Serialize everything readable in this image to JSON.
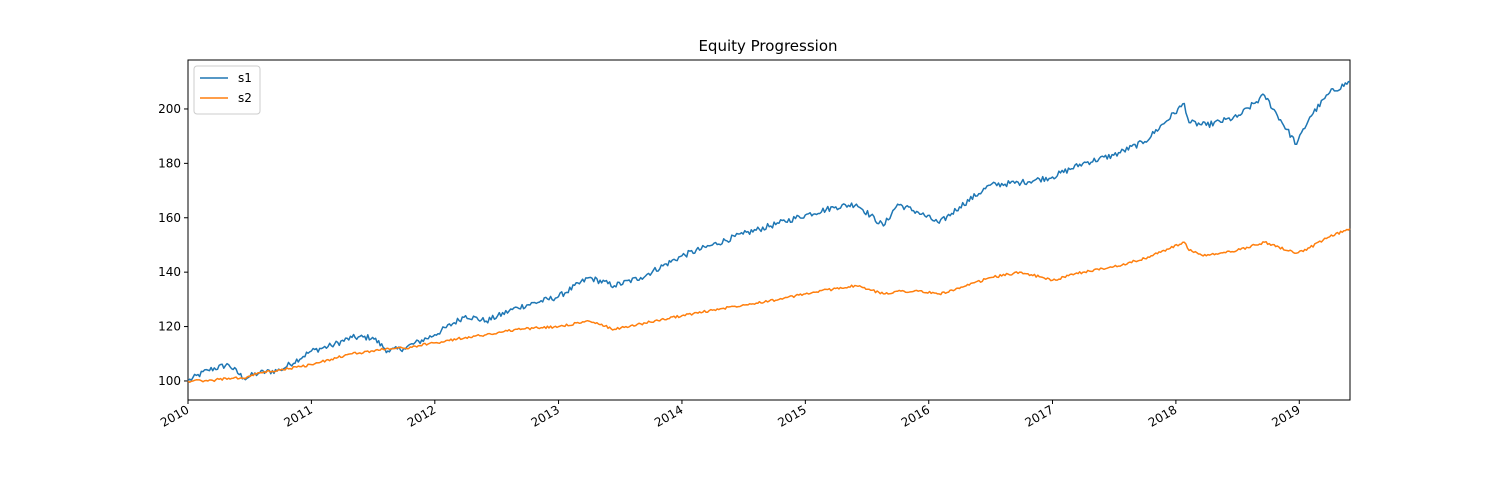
{
  "chart_data": {
    "type": "line",
    "title": "Equity Progression",
    "xlabel": "",
    "ylabel": "",
    "xlim": [
      "2010-01-01",
      "2019-05-31"
    ],
    "ylim": [
      93,
      218
    ],
    "x_ticks": [
      "2010",
      "2011",
      "2012",
      "2013",
      "2014",
      "2015",
      "2016",
      "2017",
      "2018",
      "2019"
    ],
    "y_ticks": [
      100,
      120,
      140,
      160,
      180,
      200
    ],
    "grid": false,
    "legend_position": "top-left",
    "x": [
      "2010-01-01",
      "2010-03-01",
      "2010-05-01",
      "2010-06-15",
      "2010-08-01",
      "2010-10-01",
      "2011-01-01",
      "2011-03-01",
      "2011-05-01",
      "2011-07-01",
      "2011-08-15",
      "2011-10-01",
      "2012-01-01",
      "2012-04-01",
      "2012-06-01",
      "2012-09-01",
      "2013-01-01",
      "2013-04-01",
      "2013-06-15",
      "2013-09-01",
      "2014-01-01",
      "2014-04-01",
      "2014-07-01",
      "2014-10-15",
      "2015-01-01",
      "2015-04-01",
      "2015-06-01",
      "2015-08-20",
      "2015-10-01",
      "2015-12-01",
      "2016-02-01",
      "2016-04-01",
      "2016-07-01",
      "2016-10-01",
      "2017-01-01",
      "2017-04-01",
      "2017-07-01",
      "2017-10-01",
      "2018-01-26",
      "2018-02-09",
      "2018-04-01",
      "2018-07-01",
      "2018-09-20",
      "2018-12-24",
      "2019-02-01",
      "2019-04-01",
      "2019-05-31"
    ],
    "series": [
      {
        "name": "s1",
        "color": "#1f77b4",
        "values": [
          100,
          104,
          106,
          101,
          103,
          104,
          111,
          113,
          116,
          116,
          111,
          112,
          117,
          124,
          122,
          127,
          131,
          138,
          135,
          138,
          146,
          150,
          154,
          158,
          161,
          164,
          165,
          157,
          165,
          162,
          158,
          164,
          172,
          173,
          175,
          180,
          183,
          188,
          202,
          195,
          194,
          197,
          205,
          187,
          197,
          206,
          210
        ]
      },
      {
        "name": "s2",
        "color": "#ff7f0e",
        "values": [
          100,
          100,
          101,
          101,
          103,
          104,
          106,
          108,
          110,
          111,
          112,
          112,
          114,
          116,
          117,
          119,
          120,
          122,
          119,
          121,
          124,
          126,
          128,
          130,
          132,
          134,
          135,
          132,
          133,
          133,
          132,
          134,
          138,
          140,
          137,
          140,
          142,
          145,
          151,
          148,
          146,
          148,
          151,
          147,
          149,
          153,
          156
        ]
      }
    ]
  }
}
